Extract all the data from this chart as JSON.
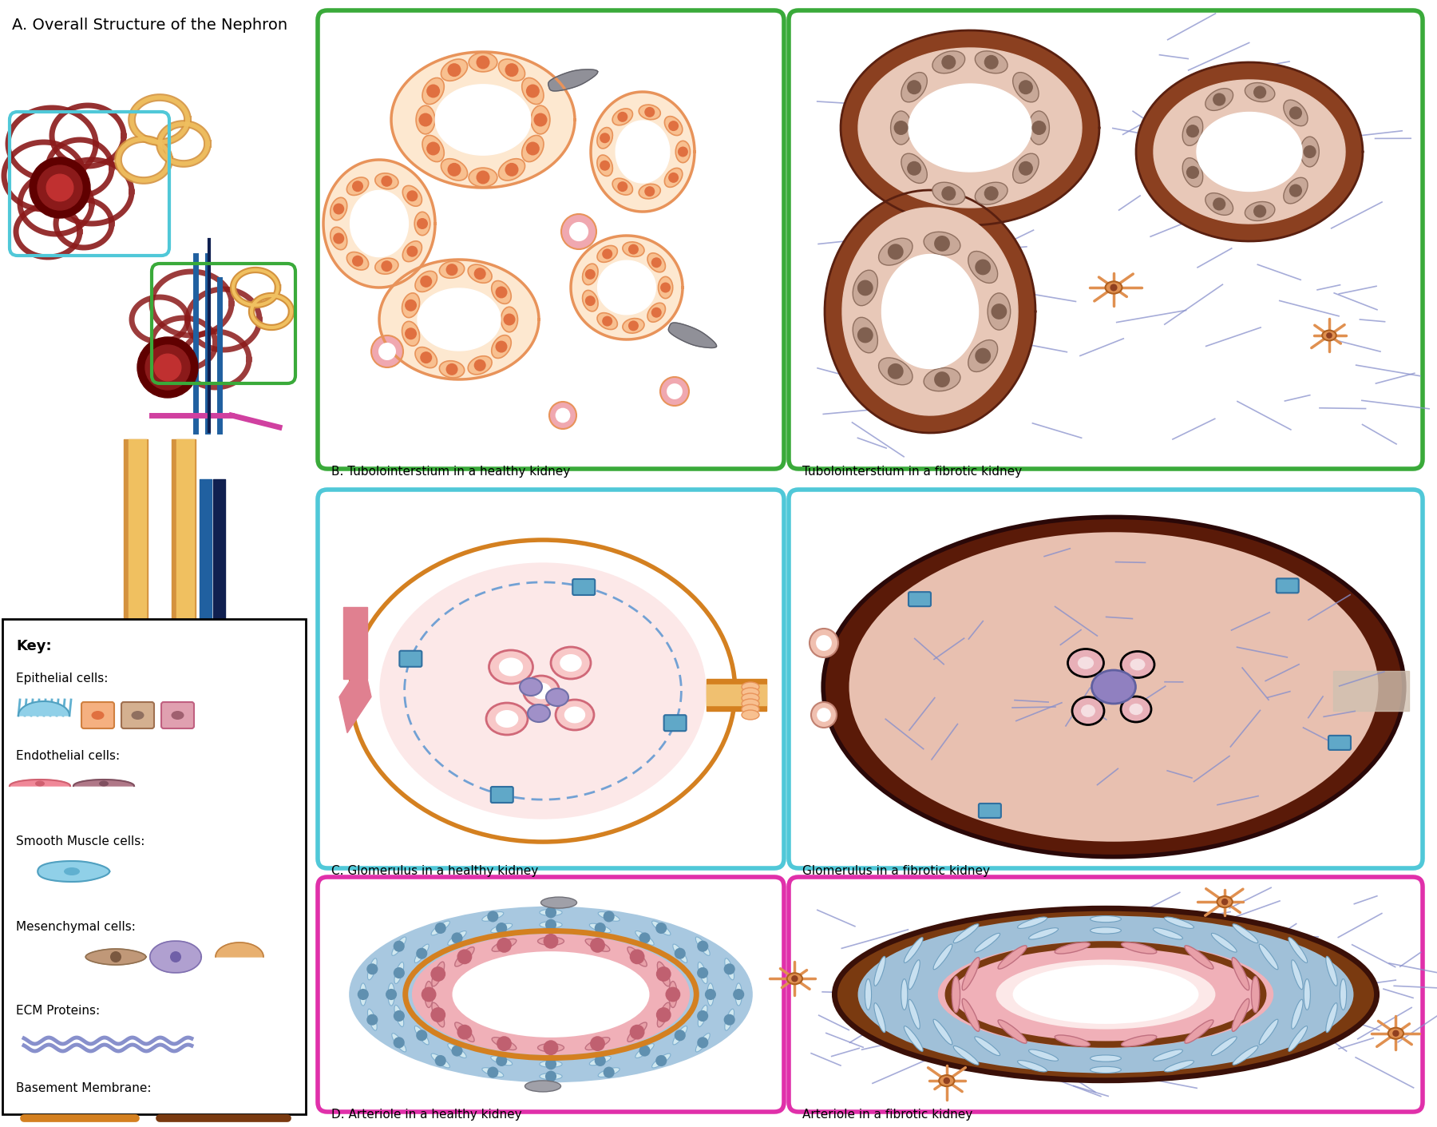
{
  "bg_color": "#ffffff",
  "panel_A_title": "A. Overall Structure of the Nephron",
  "panel_B_healthy_title": "B. Tubolointerstium in a healthy kidney",
  "panel_B_fibrotic_title": "Tubolointerstium in a fibrotic kidney",
  "panel_C_healthy_title": "C. Glomerulus in a healthy kidney",
  "panel_C_fibrotic_title": "Glomerulus in a fibrotic kidney",
  "panel_D_healthy_title": "D. Arteriole in a healthy kidney",
  "panel_D_fibrotic_title": "Arteriole in a fibrotic kidney",
  "key_title": "Key:",
  "epithelial_label": "Epithelial cells:",
  "endothelial_label": "Endothelial cells:",
  "smooth_muscle_label": "Smooth Muscle cells:",
  "mesenchymal_label": "Mesenchymal cells:",
  "ecm_label": "ECM Proteins:",
  "basement_label": "Basement Membrane:",
  "green_border": "#3aaa3a",
  "cyan_border": "#50c8d8",
  "magenta_border": "#e030aa",
  "orange_bm": "#d48020",
  "dark_brown_bm": "#7a3a10",
  "fibrotic_blue_ecm": "#8890cc",
  "nephron_orange": "#d4923e",
  "nephron_light_orange": "#f0c060",
  "nephron_dark_red": "#8b1a1a",
  "nephron_blue": "#2060a0",
  "nephron_dark_blue": "#102050",
  "nephron_magenta": "#d040a0",
  "tubule_orange": "#e8935a",
  "tubule_fill": "#fde8d0",
  "tubule_cell": "#f8c090",
  "tubule_nuc": "#e07040",
  "tubule_small_fill": "#f0a0b0",
  "glom_pink_fill": "#f8c8c8",
  "glom_pink_border": "#d06070",
  "glom_purple": "#9090c8",
  "glom_blue_pod": "#60a0c0",
  "arteriole_blue_sm": "#a0c8e0",
  "arteriole_pink": "#f0a0b0",
  "arteriole_pink_dark": "#e08090",
  "arteriole_cell_pink": "#e8a0a8",
  "fibrotic_brown": "#8b4020",
  "fibrotic_dark_brown": "#5a2010"
}
